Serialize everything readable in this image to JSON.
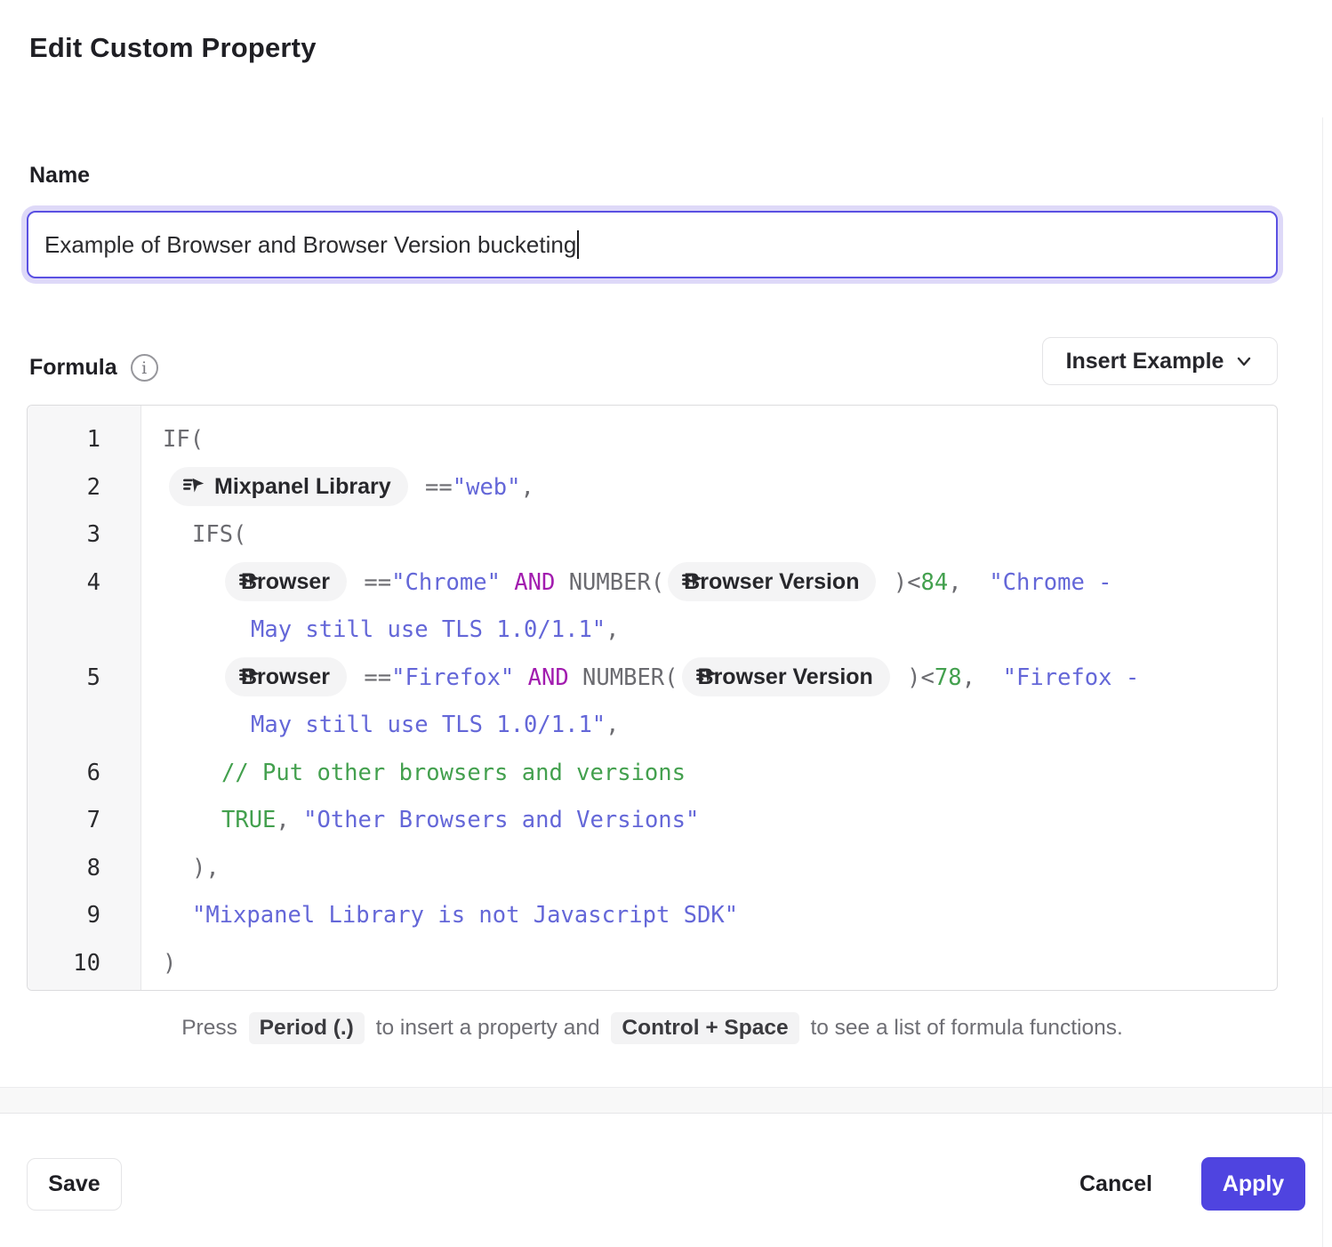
{
  "dialog": {
    "title": "Edit Custom Property"
  },
  "name_field": {
    "label": "Name",
    "value": "Example of Browser and Browser Version bucketing"
  },
  "formula": {
    "label": "Formula",
    "insert_example_label": "Insert Example",
    "lines": [
      {
        "num": 1,
        "indent": 0,
        "tokens": [
          {
            "type": "plain",
            "text": "IF("
          }
        ]
      },
      {
        "num": 2,
        "indent": 3,
        "tokens": [
          {
            "type": "chip",
            "label": "Mixpanel Library"
          },
          {
            "type": "plain",
            "text": " =="
          },
          {
            "type": "string",
            "text": "\"web\""
          },
          {
            "type": "plain",
            "text": ","
          }
        ]
      },
      {
        "num": 3,
        "indent": 33,
        "tokens": [
          {
            "type": "plain",
            "text": "IFS("
          }
        ]
      },
      {
        "num": 4,
        "indent": 66,
        "hang": 33,
        "tokens": [
          {
            "type": "chip",
            "label": "Browser"
          },
          {
            "type": "plain",
            "text": " =="
          },
          {
            "type": "string",
            "text": "\"Chrome\""
          },
          {
            "type": "op",
            "text": " AND "
          },
          {
            "type": "plain",
            "text": "NUMBER("
          },
          {
            "type": "chip",
            "label": "Browser Version"
          },
          {
            "type": "plain",
            "text": " )<"
          },
          {
            "type": "num",
            "text": "84"
          },
          {
            "type": "plain",
            "text": ",  "
          },
          {
            "type": "string",
            "text": "\"Chrome - "
          },
          {
            "type": "wrap"
          },
          {
            "type": "string",
            "text": "May still use TLS 1.0/1.1\""
          },
          {
            "type": "plain",
            "text": ","
          }
        ]
      },
      {
        "num": 5,
        "indent": 66,
        "hang": 33,
        "tokens": [
          {
            "type": "chip",
            "label": "Browser"
          },
          {
            "type": "plain",
            "text": " =="
          },
          {
            "type": "string",
            "text": "\"Firefox\""
          },
          {
            "type": "op",
            "text": " AND "
          },
          {
            "type": "plain",
            "text": "NUMBER("
          },
          {
            "type": "chip",
            "label": "Browser Version"
          },
          {
            "type": "plain",
            "text": " )<"
          },
          {
            "type": "num",
            "text": "78"
          },
          {
            "type": "plain",
            "text": ",  "
          },
          {
            "type": "string",
            "text": "\"Firefox - "
          },
          {
            "type": "wrap"
          },
          {
            "type": "string",
            "text": "May still use TLS 1.0/1.1\""
          },
          {
            "type": "plain",
            "text": ","
          }
        ]
      },
      {
        "num": 6,
        "indent": 66,
        "tokens": [
          {
            "type": "comment",
            "text": "// Put other browsers and versions"
          }
        ]
      },
      {
        "num": 7,
        "indent": 66,
        "tokens": [
          {
            "type": "bool",
            "text": "TRUE"
          },
          {
            "type": "plain",
            "text": ", "
          },
          {
            "type": "string",
            "text": "\"Other Browsers and Versions\""
          }
        ]
      },
      {
        "num": 8,
        "indent": 33,
        "tokens": [
          {
            "type": "plain",
            "text": "),"
          }
        ]
      },
      {
        "num": 9,
        "indent": 33,
        "tokens": [
          {
            "type": "string",
            "text": "\"Mixpanel Library is not Javascript SDK\""
          }
        ]
      },
      {
        "num": 10,
        "indent": 0,
        "tokens": [
          {
            "type": "plain",
            "text": ")"
          }
        ]
      }
    ]
  },
  "hint": {
    "press": "Press",
    "kbd_period": "Period (.)",
    "middle": "to insert a property and",
    "kbd_ctrl_space": "Control + Space",
    "suffix": "to see a list of formula functions."
  },
  "footer": {
    "save": "Save",
    "cancel": "Cancel",
    "apply": "Apply"
  },
  "icons": {
    "info": "info-icon",
    "chevron": "chevron-down-icon",
    "property": "event-property-icon"
  },
  "colors": {
    "accent": "#4f44e0",
    "string": "#6467d8",
    "operator": "#a21caf",
    "green": "#43a04e",
    "plain_code": "#6b6b70"
  }
}
